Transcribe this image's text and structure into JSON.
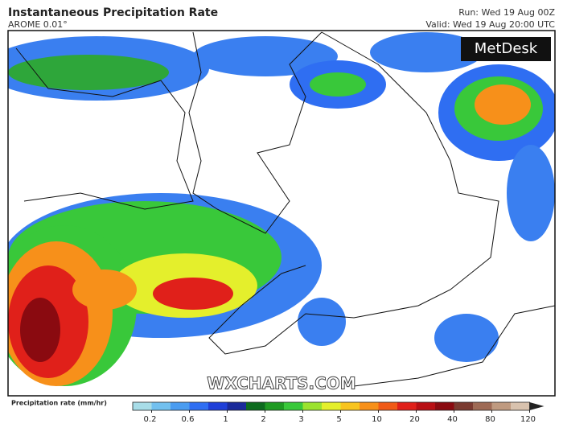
{
  "header": {
    "title": "Instantaneous Precipitation Rate",
    "model": "AROME 0.01°",
    "run": "Run: Wed 19 Aug 00Z",
    "valid": "Valid: Wed 19 Aug 20:00 UTC"
  },
  "logo": "MetDesk",
  "watermark": "WXCHARTS.COM",
  "legend": {
    "label": "Precipitation rate (mm/hr)",
    "ticks": [
      0.2,
      0.6,
      1,
      2,
      3,
      5,
      10,
      20,
      40,
      80,
      120
    ],
    "colors": [
      "#a8dde8",
      "#72c0ef",
      "#4a9cf0",
      "#2f6ef2",
      "#1f3fd8",
      "#1a2a9a",
      "#0d6b1e",
      "#1f9a22",
      "#39c83a",
      "#9be22f",
      "#e4ef2c",
      "#f8c41f",
      "#f7901a",
      "#f05a17",
      "#e0201a",
      "#b80f14",
      "#8a0a10",
      "#7a3a30",
      "#9e6a55",
      "#bf9a80",
      "#d8c2ae"
    ]
  }
}
